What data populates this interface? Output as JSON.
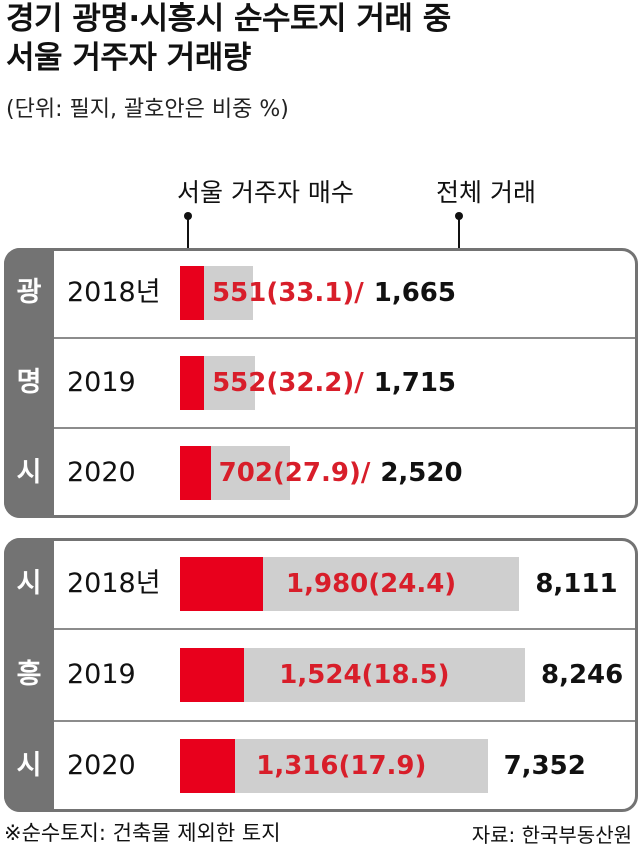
{
  "title_line1": "경기 광명·시흥시 순수토지 거래 중",
  "title_line2": "서울 거주자 거래량",
  "unit": "(단위: 필지, 괄호안은 비중 %)",
  "legend": {
    "seoul": "서울 거주자 매수",
    "total": "전체 거래"
  },
  "footnote": "※순수토지: 건축물 제외한 토지",
  "source": "자료: 한국부동산원",
  "colors": {
    "seoul": "#e8001c",
    "total": "#cfcfcf",
    "group": "#737373",
    "seoul_text": "#d81e2a"
  },
  "chart_data": [
    {
      "type": "bar",
      "group_label": "광명시",
      "group_chars": [
        "광",
        "명",
        "시"
      ],
      "categories": [
        "2018년",
        "2019",
        "2020"
      ],
      "series": [
        {
          "name": "서울 거주자 매수",
          "values": [
            551,
            552,
            702
          ]
        },
        {
          "name": "전체 거래",
          "values": [
            1665,
            1715,
            2520
          ]
        }
      ],
      "share_pct": [
        33.1,
        32.2,
        27.9
      ],
      "seoul_labels": [
        "551(33.1)/",
        "552(32.2)/",
        "702(27.9)/"
      ],
      "total_labels": [
        "1,665",
        "1,715",
        "2,520"
      ]
    },
    {
      "type": "bar",
      "group_label": "시흥시",
      "group_chars": [
        "시",
        "흥",
        "시"
      ],
      "categories": [
        "2018년",
        "2019",
        "2020"
      ],
      "series": [
        {
          "name": "서울 거주자 매수",
          "values": [
            1980,
            1524,
            1316
          ]
        },
        {
          "name": "전체 거래",
          "values": [
            8111,
            8246,
            7352
          ]
        }
      ],
      "share_pct": [
        24.4,
        18.5,
        17.9
      ],
      "seoul_labels": [
        "1,980(24.4)",
        "1,524(18.5)",
        "1,316(17.9)"
      ],
      "total_labels": [
        "8,111",
        "8,246",
        "7,352"
      ]
    }
  ]
}
